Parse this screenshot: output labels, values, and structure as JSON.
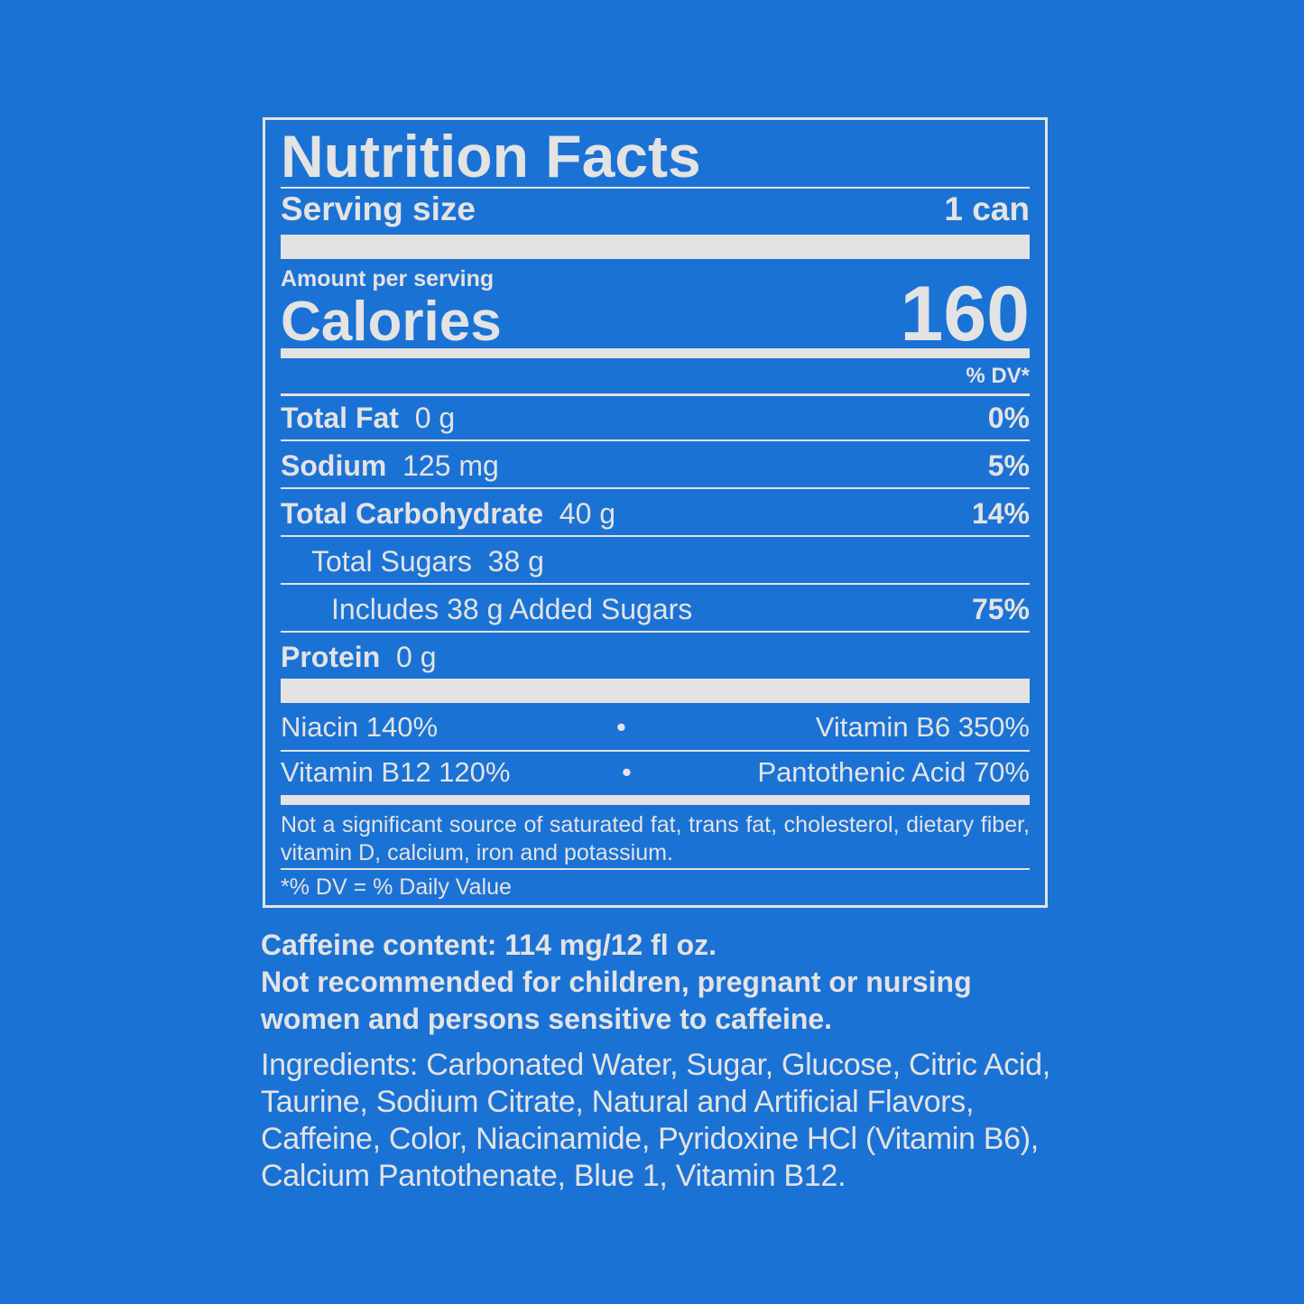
{
  "label": {
    "title": "Nutrition Facts",
    "serving_label": "Serving size",
    "serving_value": "1 can",
    "amount_per_serving": "Amount per serving",
    "calories_label": "Calories",
    "calories_value": "160",
    "dv_header": "% DV*",
    "nutrients": [
      {
        "name": "Total Fat",
        "amount": "0 g",
        "dv": "0%"
      },
      {
        "name": "Sodium",
        "amount": "125 mg",
        "dv": "5%"
      },
      {
        "name": "Total Carbohydrate",
        "amount": "40 g",
        "dv": "14%"
      },
      {
        "name": "Total Sugars",
        "amount": "38 g",
        "dv": ""
      },
      {
        "name": "Includes 38 g Added Sugars",
        "amount": "",
        "dv": "75%"
      },
      {
        "name": "Protein",
        "amount": "0 g",
        "dv": ""
      }
    ],
    "vitamins": [
      {
        "left": "Niacin 140%",
        "right": "Vitamin B6 350%"
      },
      {
        "left": "Vitamin B12 120%",
        "right": "Pantothenic Acid 70%"
      }
    ],
    "bullet": "•",
    "footnote": "Not a significant source of saturated fat, trans fat, cholesterol, dietary fiber, vitamin D, calcium, iron and potassium.",
    "dv_note": "*% DV = % Daily Value"
  },
  "caffeine": {
    "content": "Caffeine content: 114 mg/12 fl oz.",
    "warning": "Not recommended for children, pregnant or nursing women and persons sensitive to caffeine."
  },
  "ingredients": "Ingredients: Carbonated Water, Sugar, Glucose, Citric Acid, Taurine, Sodium Citrate, Natural and Artificial Flavors, Caffeine, Color, Niacinamide, Pyridoxine HCl (Vitamin B6), Calcium Pantothenate, Blue 1, Vitamin B12.",
  "colors": {
    "background": "#1b72d5",
    "text": "#e3e3e3"
  }
}
